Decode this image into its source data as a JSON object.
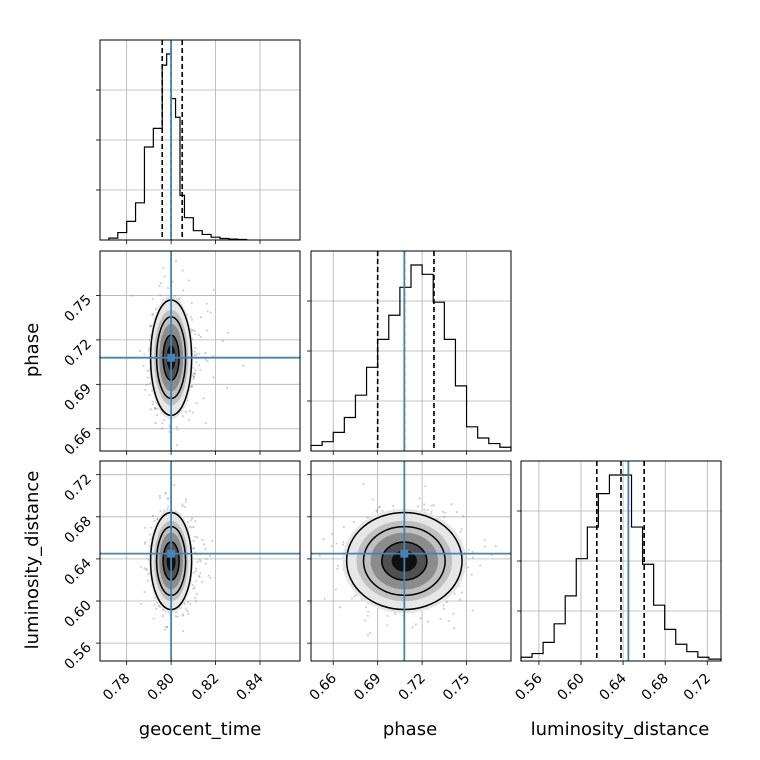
{
  "chart_data": {
    "type": "corner",
    "parameters": [
      "geocent_time",
      "phase",
      "luminosity_distance"
    ],
    "truths": {
      "geocent_time": 0.8,
      "phase": 0.708,
      "luminosity_distance": 0.645
    },
    "truth_color": "#4682b4",
    "quantiles": {
      "geocent_time": [
        0.796,
        0.8,
        0.805
      ],
      "phase": [
        0.69,
        0.708,
        0.728
      ],
      "luminosity_distance": [
        0.615,
        0.638,
        0.66
      ]
    },
    "ranges": {
      "geocent_time": [
        0.768,
        0.858
      ],
      "phase": [
        0.645,
        0.78
      ],
      "luminosity_distance": [
        0.543,
        0.733
      ]
    },
    "ticks": {
      "geocent_time": [
        "0.78",
        "0.80",
        "0.82",
        "0.84"
      ],
      "phase": [
        "0.66",
        "0.69",
        "0.72",
        "0.75"
      ],
      "luminosity_distance": [
        "0.56",
        "0.60",
        "0.64",
        "0.68",
        "0.72"
      ]
    },
    "histograms": {
      "geocent_time": {
        "edges": [
          0.772,
          0.776,
          0.78,
          0.784,
          0.788,
          0.792,
          0.796,
          0.798,
          0.8,
          0.802,
          0.804,
          0.806,
          0.81,
          0.814,
          0.818,
          0.822,
          0.826,
          0.83,
          0.834
        ],
        "counts": [
          0.01,
          0.04,
          0.1,
          0.2,
          0.5,
          0.6,
          0.94,
          1.0,
          0.76,
          0.66,
          0.24,
          0.12,
          0.05,
          0.03,
          0.015,
          0.008,
          0.005,
          0.003
        ]
      },
      "phase": {
        "edges": [
          0.645,
          0.6525,
          0.66,
          0.6675,
          0.675,
          0.6825,
          0.69,
          0.6975,
          0.705,
          0.7125,
          0.72,
          0.7275,
          0.735,
          0.7425,
          0.75,
          0.7575,
          0.765,
          0.7725,
          0.78
        ],
        "counts": [
          0.03,
          0.05,
          0.1,
          0.18,
          0.3,
          0.45,
          0.6,
          0.73,
          0.88,
          1.0,
          0.95,
          0.8,
          0.6,
          0.35,
          0.13,
          0.07,
          0.04,
          0.02
        ]
      },
      "luminosity_distance": {
        "edges": [
          0.543,
          0.5535,
          0.564,
          0.5745,
          0.585,
          0.5955,
          0.606,
          0.6165,
          0.627,
          0.6375,
          0.648,
          0.6585,
          0.669,
          0.6795,
          0.69,
          0.7005,
          0.711,
          0.7215,
          0.733
        ],
        "counts": [
          0.02,
          0.04,
          0.1,
          0.2,
          0.35,
          0.55,
          0.72,
          0.9,
          1.0,
          1.0,
          0.72,
          0.52,
          0.3,
          0.17,
          0.09,
          0.05,
          0.02,
          0.01
        ]
      }
    }
  }
}
